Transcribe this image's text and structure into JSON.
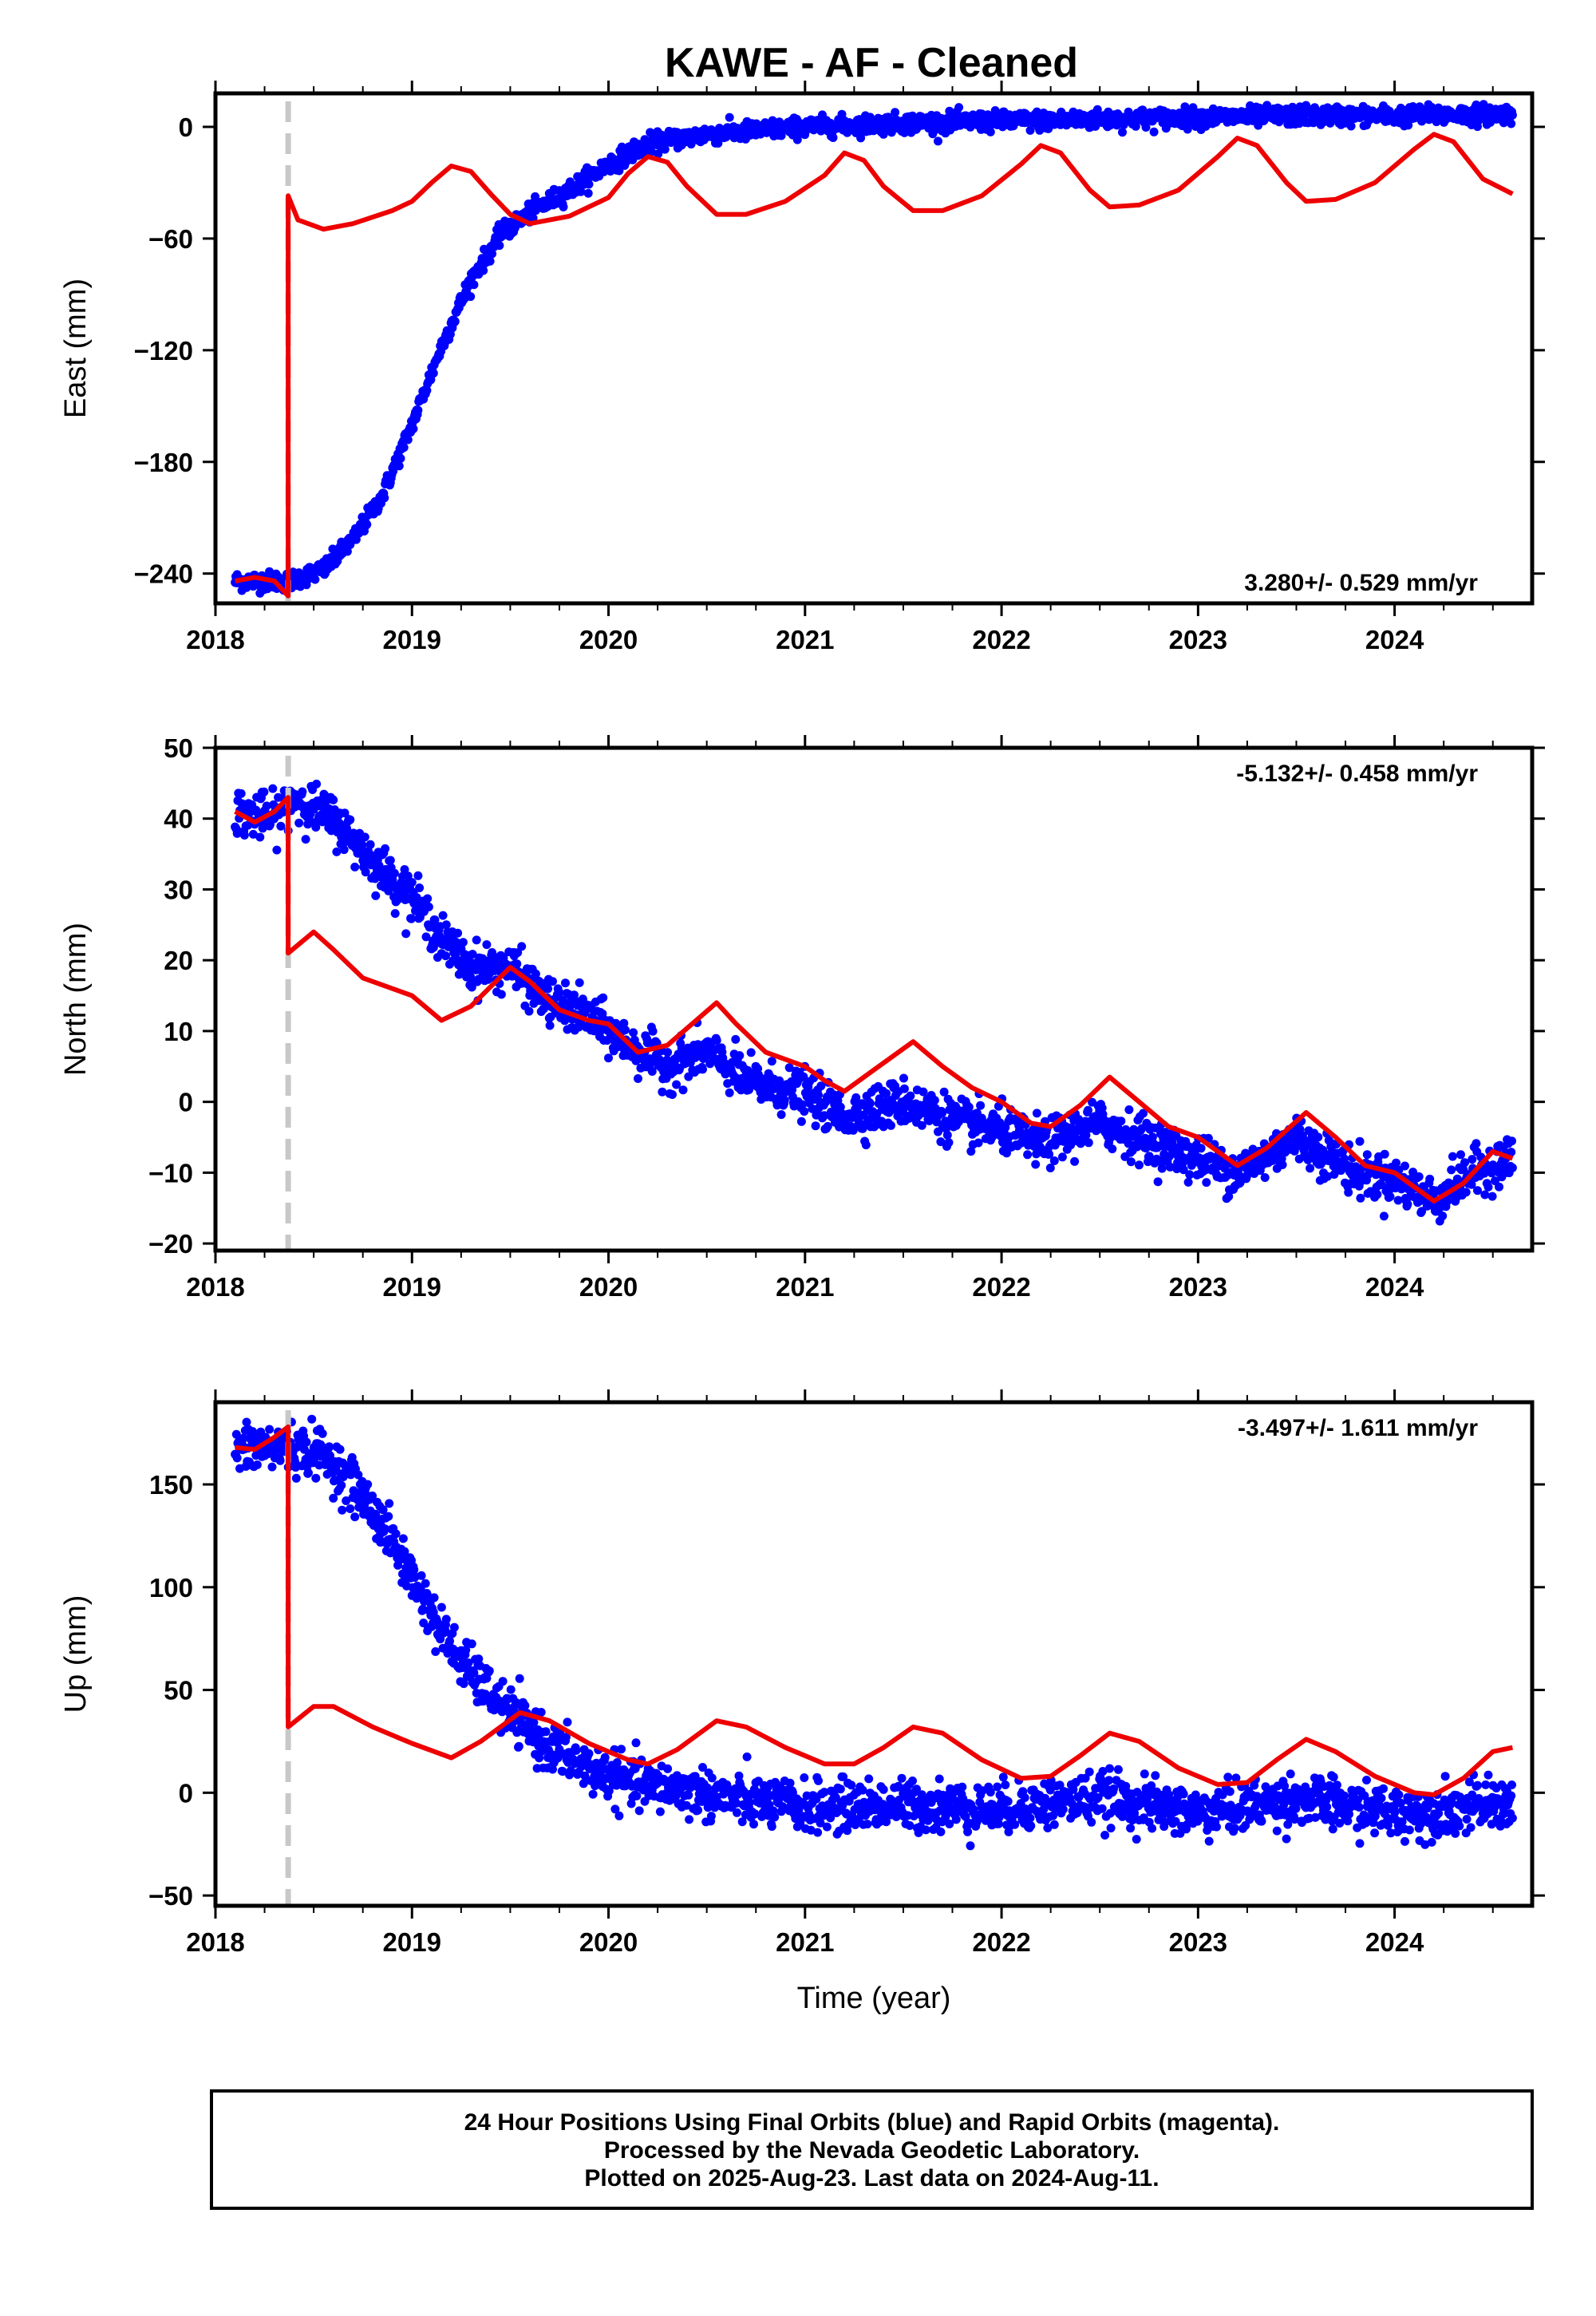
{
  "title": "KAWE  - AF - Cleaned",
  "footer": {
    "line1": "24 Hour Positions Using Final Orbits (blue) and Rapid Orbits (magenta).",
    "line2": "Processed by the Nevada Geodetic Laboratory.",
    "line3": "Plotted on 2025-Aug-23. Last data on 2024-Aug-11."
  },
  "colors": {
    "points": "#0000ff",
    "model": "#ee0000",
    "event_line": "#c8c8c8"
  },
  "chart_data": [
    {
      "type": "scatter",
      "ylabel": "East (mm)",
      "xlabel": "",
      "xlim": [
        2018.0,
        2024.7
      ],
      "ylim": [
        -256,
        18
      ],
      "yticks": [
        -240,
        -180,
        -120,
        -60,
        0
      ],
      "xticks": [
        2018,
        2019,
        2020,
        2021,
        2022,
        2023,
        2024
      ],
      "rate_label": "3.280+/- 0.529 mm/yr",
      "rate_position": "bottom-right",
      "event_line_x": 2018.37,
      "observations_trend": [
        [
          2018.1,
          -244
        ],
        [
          2018.37,
          -244
        ],
        [
          2018.55,
          -238
        ],
        [
          2018.7,
          -222
        ],
        [
          2018.85,
          -198
        ],
        [
          2019.0,
          -160
        ],
        [
          2019.15,
          -118
        ],
        [
          2019.3,
          -82
        ],
        [
          2019.45,
          -58
        ],
        [
          2019.6,
          -46
        ],
        [
          2019.8,
          -34
        ],
        [
          2020.0,
          -20
        ],
        [
          2020.2,
          -9
        ],
        [
          2020.5,
          -4
        ],
        [
          2021.0,
          0
        ],
        [
          2021.5,
          2
        ],
        [
          2022.0,
          3
        ],
        [
          2022.5,
          4
        ],
        [
          2023.0,
          5
        ],
        [
          2023.5,
          6
        ],
        [
          2024.0,
          6
        ],
        [
          2024.6,
          7
        ]
      ],
      "observations_noise_mm": 2.5,
      "model": [
        [
          2018.1,
          -244
        ],
        [
          2018.2,
          -242
        ],
        [
          2018.3,
          -244
        ],
        [
          2018.37,
          -252
        ],
        [
          2018.37,
          -37
        ],
        [
          2018.42,
          -50
        ],
        [
          2018.55,
          -55
        ],
        [
          2018.7,
          -52
        ],
        [
          2018.9,
          -45
        ],
        [
          2019.0,
          -40
        ],
        [
          2019.1,
          -30
        ],
        [
          2019.2,
          -21
        ],
        [
          2019.3,
          -24
        ],
        [
          2019.4,
          -36
        ],
        [
          2019.5,
          -47
        ],
        [
          2019.6,
          -52
        ],
        [
          2019.8,
          -48
        ],
        [
          2020.0,
          -38
        ],
        [
          2020.1,
          -25
        ],
        [
          2020.2,
          -16
        ],
        [
          2020.3,
          -19
        ],
        [
          2020.4,
          -32
        ],
        [
          2020.55,
          -47
        ],
        [
          2020.7,
          -47
        ],
        [
          2020.9,
          -40
        ],
        [
          2021.1,
          -26
        ],
        [
          2021.2,
          -14
        ],
        [
          2021.3,
          -18
        ],
        [
          2021.4,
          -32
        ],
        [
          2021.55,
          -45
        ],
        [
          2021.7,
          -45
        ],
        [
          2021.9,
          -37
        ],
        [
          2022.1,
          -20
        ],
        [
          2022.2,
          -10
        ],
        [
          2022.3,
          -14
        ],
        [
          2022.45,
          -34
        ],
        [
          2022.55,
          -43
        ],
        [
          2022.7,
          -42
        ],
        [
          2022.9,
          -34
        ],
        [
          2023.1,
          -16
        ],
        [
          2023.2,
          -6
        ],
        [
          2023.3,
          -10
        ],
        [
          2023.45,
          -30
        ],
        [
          2023.55,
          -40
        ],
        [
          2023.7,
          -39
        ],
        [
          2023.9,
          -30
        ],
        [
          2024.1,
          -12
        ],
        [
          2024.2,
          -4
        ],
        [
          2024.3,
          -8
        ],
        [
          2024.45,
          -28
        ],
        [
          2024.6,
          -36
        ]
      ]
    },
    {
      "type": "scatter",
      "ylabel": "North (mm)",
      "xlabel": "",
      "xlim": [
        2018.0,
        2024.7
      ],
      "ylim": [
        -21,
        50
      ],
      "yticks": [
        -20,
        -10,
        0,
        10,
        20,
        30,
        40,
        50
      ],
      "xticks": [
        2018,
        2019,
        2020,
        2021,
        2022,
        2023,
        2024
      ],
      "rate_label": "-5.132+/- 0.458 mm/yr",
      "rate_position": "top-right",
      "event_line_x": 2018.37,
      "observations_trend": [
        [
          2018.1,
          41
        ],
        [
          2018.3,
          40
        ],
        [
          2018.4,
          43
        ],
        [
          2018.6,
          40
        ],
        [
          2018.8,
          34
        ],
        [
          2019.0,
          29
        ],
        [
          2019.15,
          23
        ],
        [
          2019.3,
          19
        ],
        [
          2019.5,
          19
        ],
        [
          2019.7,
          14
        ],
        [
          2019.9,
          12
        ],
        [
          2020.1,
          8
        ],
        [
          2020.3,
          5
        ],
        [
          2020.5,
          7
        ],
        [
          2020.7,
          3
        ],
        [
          2021.0,
          1
        ],
        [
          2021.2,
          -2
        ],
        [
          2021.5,
          0
        ],
        [
          2021.8,
          -3
        ],
        [
          2022.0,
          -4
        ],
        [
          2022.2,
          -6
        ],
        [
          2022.5,
          -3
        ],
        [
          2022.8,
          -6
        ],
        [
          2023.0,
          -8
        ],
        [
          2023.2,
          -10
        ],
        [
          2023.5,
          -5
        ],
        [
          2023.8,
          -10
        ],
        [
          2024.0,
          -11
        ],
        [
          2024.2,
          -14
        ],
        [
          2024.4,
          -10
        ],
        [
          2024.6,
          -8
        ]
      ],
      "observations_noise_mm": 1.6,
      "model": [
        [
          2018.1,
          41
        ],
        [
          2018.2,
          39.5
        ],
        [
          2018.3,
          41
        ],
        [
          2018.37,
          43
        ],
        [
          2018.37,
          21
        ],
        [
          2018.5,
          24
        ],
        [
          2018.6,
          21.5
        ],
        [
          2018.75,
          17.5
        ],
        [
          2018.9,
          16
        ],
        [
          2019.0,
          15
        ],
        [
          2019.15,
          11.5
        ],
        [
          2019.3,
          13.5
        ],
        [
          2019.5,
          19
        ],
        [
          2019.6,
          17
        ],
        [
          2019.75,
          13
        ],
        [
          2019.9,
          11.5
        ],
        [
          2020.0,
          11
        ],
        [
          2020.15,
          7
        ],
        [
          2020.3,
          8
        ],
        [
          2020.55,
          14
        ],
        [
          2020.65,
          11
        ],
        [
          2020.8,
          7
        ],
        [
          2021.0,
          5
        ],
        [
          2021.1,
          3
        ],
        [
          2021.2,
          1.5
        ],
        [
          2021.35,
          4.5
        ],
        [
          2021.55,
          8.5
        ],
        [
          2021.7,
          5
        ],
        [
          2021.85,
          2
        ],
        [
          2022.0,
          0
        ],
        [
          2022.15,
          -3
        ],
        [
          2022.25,
          -3.5
        ],
        [
          2022.4,
          -0.5
        ],
        [
          2022.55,
          3.5
        ],
        [
          2022.7,
          0
        ],
        [
          2022.85,
          -3.5
        ],
        [
          2023.0,
          -5
        ],
        [
          2023.2,
          -9
        ],
        [
          2023.35,
          -6.5
        ],
        [
          2023.55,
          -1.5
        ],
        [
          2023.7,
          -5
        ],
        [
          2023.85,
          -9
        ],
        [
          2024.0,
          -10
        ],
        [
          2024.2,
          -14
        ],
        [
          2024.35,
          -11.5
        ],
        [
          2024.5,
          -7
        ],
        [
          2024.6,
          -8
        ]
      ]
    },
    {
      "type": "scatter",
      "ylabel": "Up (mm)",
      "xlabel": "Time (year)",
      "xlim": [
        2018.0,
        2024.7
      ],
      "ylim": [
        -55,
        190
      ],
      "yticks": [
        -50,
        0,
        50,
        100,
        150
      ],
      "xticks": [
        2018,
        2019,
        2020,
        2021,
        2022,
        2023,
        2024
      ],
      "rate_label": "-3.497+/- 1.611 mm/yr",
      "rate_position": "top-right",
      "event_line_x": 2018.37,
      "observations_trend": [
        [
          2018.1,
          167
        ],
        [
          2018.37,
          168
        ],
        [
          2018.55,
          165
        ],
        [
          2018.7,
          150
        ],
        [
          2018.85,
          130
        ],
        [
          2019.0,
          105
        ],
        [
          2019.15,
          78
        ],
        [
          2019.3,
          58
        ],
        [
          2019.5,
          38
        ],
        [
          2019.7,
          22
        ],
        [
          2019.9,
          12
        ],
        [
          2020.1,
          5
        ],
        [
          2020.4,
          1
        ],
        [
          2020.7,
          -4
        ],
        [
          2021.0,
          -7
        ],
        [
          2021.5,
          -6
        ],
        [
          2022.0,
          -8
        ],
        [
          2022.5,
          -2
        ],
        [
          2023.0,
          -10
        ],
        [
          2023.5,
          -3
        ],
        [
          2024.0,
          -10
        ],
        [
          2024.3,
          -8
        ],
        [
          2024.6,
          -5
        ]
      ],
      "observations_noise_mm": 6,
      "model": [
        [
          2018.1,
          168
        ],
        [
          2018.2,
          167
        ],
        [
          2018.3,
          173
        ],
        [
          2018.37,
          178
        ],
        [
          2018.37,
          32
        ],
        [
          2018.5,
          42
        ],
        [
          2018.6,
          42
        ],
        [
          2018.8,
          32
        ],
        [
          2019.0,
          24
        ],
        [
          2019.2,
          17
        ],
        [
          2019.35,
          25
        ],
        [
          2019.55,
          39
        ],
        [
          2019.7,
          35
        ],
        [
          2019.9,
          24
        ],
        [
          2020.1,
          16
        ],
        [
          2020.2,
          14
        ],
        [
          2020.35,
          21
        ],
        [
          2020.55,
          35
        ],
        [
          2020.7,
          32
        ],
        [
          2020.9,
          22
        ],
        [
          2021.1,
          14
        ],
        [
          2021.25,
          14
        ],
        [
          2021.4,
          22
        ],
        [
          2021.55,
          32
        ],
        [
          2021.7,
          29
        ],
        [
          2021.9,
          16
        ],
        [
          2022.1,
          7
        ],
        [
          2022.25,
          8
        ],
        [
          2022.4,
          18
        ],
        [
          2022.55,
          29
        ],
        [
          2022.7,
          25
        ],
        [
          2022.9,
          12
        ],
        [
          2023.1,
          4
        ],
        [
          2023.25,
          5
        ],
        [
          2023.4,
          16
        ],
        [
          2023.55,
          26
        ],
        [
          2023.7,
          20
        ],
        [
          2023.9,
          8
        ],
        [
          2024.1,
          0
        ],
        [
          2024.2,
          -1
        ],
        [
          2024.35,
          7
        ],
        [
          2024.5,
          20
        ],
        [
          2024.6,
          22
        ]
      ]
    }
  ]
}
